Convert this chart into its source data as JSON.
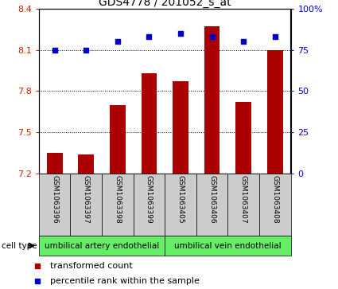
{
  "title": "GDS4778 / 201052_s_at",
  "samples": [
    "GSM1063396",
    "GSM1063397",
    "GSM1063398",
    "GSM1063399",
    "GSM1063405",
    "GSM1063406",
    "GSM1063407",
    "GSM1063408"
  ],
  "bar_values": [
    7.35,
    7.34,
    7.7,
    7.93,
    7.87,
    8.27,
    7.72,
    8.1
  ],
  "percentile_values": [
    75,
    75,
    80,
    83,
    85,
    83,
    80,
    83
  ],
  "bar_color": "#AA0000",
  "dot_color": "#0000CC",
  "ylim_left": [
    7.2,
    8.4
  ],
  "ylim_right": [
    0,
    100
  ],
  "yticks_left": [
    7.2,
    7.5,
    7.8,
    8.1,
    8.4
  ],
  "yticks_right": [
    0,
    25,
    50,
    75,
    100
  ],
  "ytick_labels_right": [
    "0",
    "25",
    "50",
    "75",
    "100%"
  ],
  "grid_values": [
    7.5,
    7.8,
    8.1
  ],
  "cell_type_groups": [
    {
      "label": "umbilical artery endothelial",
      "indices": [
        0,
        1,
        2,
        3
      ],
      "color": "#66EE66"
    },
    {
      "label": "umbilical vein endothelial",
      "indices": [
        4,
        5,
        6,
        7
      ],
      "color": "#66EE66"
    }
  ],
  "cell_type_label": "cell type",
  "legend_bar_label": "transformed count",
  "legend_dot_label": "percentile rank within the sample",
  "sample_box_color": "#cccccc",
  "bar_width": 0.5,
  "title_fontsize": 10,
  "tick_fontsize": 8,
  "label_fontsize": 6.5,
  "cell_fontsize": 7.5,
  "legend_fontsize": 8
}
